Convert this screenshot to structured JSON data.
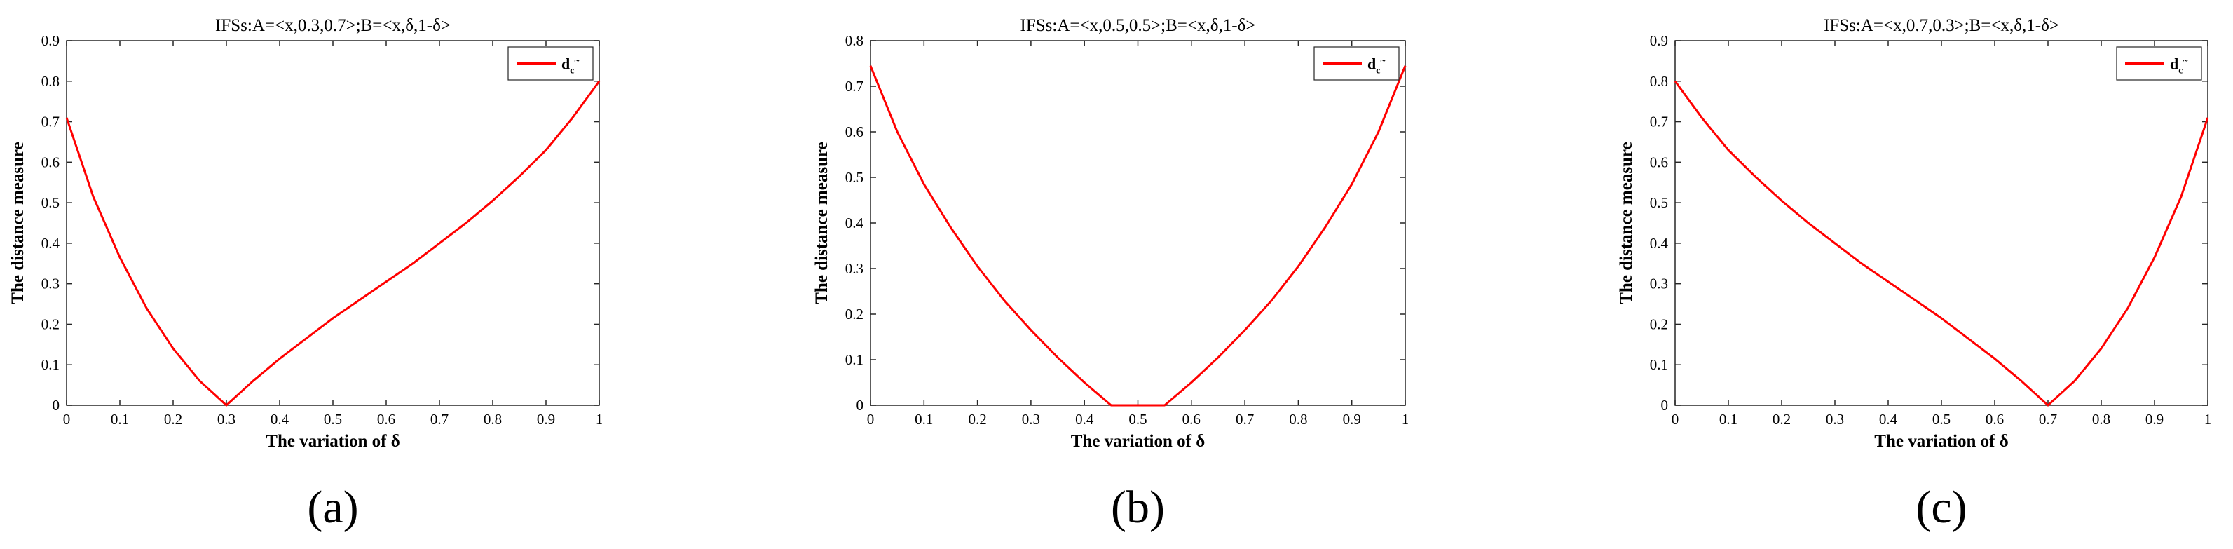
{
  "chart_data": [
    {
      "type": "line",
      "title": "IFSs:A=<x,0.3,0.7>;B=<x,δ,1-δ>",
      "xlabel": "The variation of δ",
      "ylabel": "The distance measure",
      "xlim": [
        0,
        1
      ],
      "ylim": [
        0,
        0.9
      ],
      "xticks": [
        "0",
        "0.1",
        "0.2",
        "0.3",
        "0.4",
        "0.5",
        "0.6",
        "0.7",
        "0.8",
        "0.9",
        "1"
      ],
      "yticks": [
        "0",
        "0.1",
        "0.2",
        "0.3",
        "0.4",
        "0.5",
        "0.6",
        "0.7",
        "0.8",
        "0.9"
      ],
      "legend": {
        "main": "d",
        "sub": "c",
        "sup": "~",
        "position": "top-right"
      },
      "caption": "(a)",
      "series": [
        {
          "color": "#ff0000",
          "x": [
            0,
            0.05,
            0.1,
            0.15,
            0.2,
            0.25,
            0.3,
            0.35,
            0.4,
            0.45,
            0.5,
            0.55,
            0.6,
            0.65,
            0.7,
            0.75,
            0.8,
            0.85,
            0.9,
            0.95,
            1
          ],
          "y": [
            0.71,
            0.515,
            0.365,
            0.24,
            0.14,
            0.06,
            0.0,
            0.06,
            0.115,
            0.165,
            0.215,
            0.26,
            0.305,
            0.35,
            0.4,
            0.45,
            0.505,
            0.565,
            0.63,
            0.71,
            0.8
          ]
        }
      ]
    },
    {
      "type": "line",
      "title": "IFSs:A=<x,0.5,0.5>;B=<x,δ,1-δ>",
      "xlabel": "The variation of δ",
      "ylabel": "The distance measure",
      "xlim": [
        0,
        1
      ],
      "ylim": [
        0,
        0.8
      ],
      "xticks": [
        "0",
        "0.1",
        "0.2",
        "0.3",
        "0.4",
        "0.5",
        "0.6",
        "0.7",
        "0.8",
        "0.9",
        "1"
      ],
      "yticks": [
        "0",
        "0.1",
        "0.2",
        "0.3",
        "0.4",
        "0.5",
        "0.6",
        "0.7",
        "0.8"
      ],
      "legend": {
        "main": "d",
        "sub": "c",
        "sup": "~",
        "position": "top-right"
      },
      "caption": "(b)",
      "series": [
        {
          "color": "#ff0000",
          "x": [
            0,
            0.05,
            0.1,
            0.15,
            0.2,
            0.25,
            0.3,
            0.35,
            0.4,
            0.45,
            0.5,
            0.55,
            0.6,
            0.65,
            0.7,
            0.75,
            0.8,
            0.85,
            0.9,
            0.95,
            1
          ],
          "y": [
            0.745,
            0.6,
            0.485,
            0.39,
            0.305,
            0.23,
            0.165,
            0.105,
            0.05,
            0.0,
            0.0,
            0.0,
            0.05,
            0.105,
            0.165,
            0.23,
            0.305,
            0.39,
            0.485,
            0.6,
            0.745
          ]
        }
      ]
    },
    {
      "type": "line",
      "title": "IFSs:A=<x,0.7,0.3>;B=<x,δ,1-δ>",
      "xlabel": "The variation of δ",
      "ylabel": "The distance measure",
      "xlim": [
        0,
        1
      ],
      "ylim": [
        0,
        0.9
      ],
      "xticks": [
        "0",
        "0.1",
        "0.2",
        "0.3",
        "0.4",
        "0.5",
        "0.6",
        "0.7",
        "0.8",
        "0.9",
        "1"
      ],
      "yticks": [
        "0",
        "0.1",
        "0.2",
        "0.3",
        "0.4",
        "0.5",
        "0.6",
        "0.7",
        "0.8",
        "0.9"
      ],
      "legend": {
        "main": "d",
        "sub": "c",
        "sup": "~",
        "position": "top-right"
      },
      "caption": "(c)",
      "series": [
        {
          "color": "#ff0000",
          "x": [
            0,
            0.05,
            0.1,
            0.15,
            0.2,
            0.25,
            0.3,
            0.35,
            0.4,
            0.45,
            0.5,
            0.55,
            0.6,
            0.65,
            0.7,
            0.75,
            0.8,
            0.85,
            0.9,
            0.95,
            1
          ],
          "y": [
            0.8,
            0.71,
            0.63,
            0.565,
            0.505,
            0.45,
            0.4,
            0.35,
            0.305,
            0.26,
            0.215,
            0.165,
            0.115,
            0.06,
            0.0,
            0.06,
            0.14,
            0.24,
            0.365,
            0.515,
            0.71
          ]
        }
      ]
    }
  ]
}
